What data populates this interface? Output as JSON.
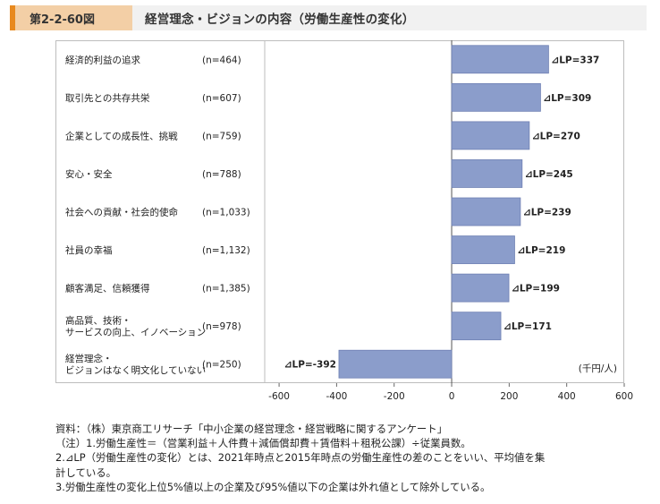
{
  "header": {
    "figure_number": "第2-2-60図",
    "title": "経営理念・ビジョンの内容（労働生産性の変化）"
  },
  "chart_data": {
    "type": "bar",
    "orientation": "horizontal",
    "categories": [
      {
        "label": [
          "経済的利益の追求"
        ],
        "n": "(n=464)"
      },
      {
        "label": [
          "取引先との共存共栄"
        ],
        "n": "(n=607)"
      },
      {
        "label": [
          "企業としての成長性、挑戦"
        ],
        "n": "(n=759)"
      },
      {
        "label": [
          "安心・安全"
        ],
        "n": "(n=788)"
      },
      {
        "label": [
          "社会への貢献・社会的使命"
        ],
        "n": "(n=1,033)"
      },
      {
        "label": [
          "社員の幸福"
        ],
        "n": "(n=1,132)"
      },
      {
        "label": [
          "顧客満足、信頼獲得"
        ],
        "n": "(n=1,385)"
      },
      {
        "label": [
          "高品質、技術・",
          "サービスの向上、イノベーション"
        ],
        "n": "(n=978)"
      },
      {
        "label": [
          "経営理念・",
          "ビジョンはなく明文化していない"
        ],
        "n": "(n=250)"
      }
    ],
    "values": [
      337,
      309,
      270,
      245,
      239,
      219,
      199,
      171,
      -392
    ],
    "value_labels": [
      "⊿LP=337",
      "⊿LP=309",
      "⊿LP=270",
      "⊿LP=245",
      "⊿LP=239",
      "⊿LP=219",
      "⊿LP=199",
      "⊿LP=171",
      "⊿LP=-392"
    ],
    "xlim": [
      -650,
      600
    ],
    "xticks": [
      -600,
      -400,
      -200,
      0,
      200,
      400,
      600
    ],
    "unit_label": "(千円/人)",
    "bar_color": "#8b9dcb",
    "bar_stroke": "#6f80b3",
    "grid": false,
    "legend": "none"
  },
  "notes": {
    "source": "資料：（株）東京商工リサーチ「中小企業の経営理念・経営戦略に関するアンケート」",
    "note1": "（注）1.労働生産性＝（営業利益＋人件費＋減価償却費＋賃借料＋租税公課）÷従業員数。",
    "note2_line1": "2.⊿LP（労働生産性の変化）とは、2021年時点と2015年時点の労働生産性の差のことをいい、平均値を集",
    "note2_line2": "計している。",
    "note3": "3.労働生産性の変化上位5%値以上の企業及び95%値以下の企業は外れ値として除外している。"
  }
}
